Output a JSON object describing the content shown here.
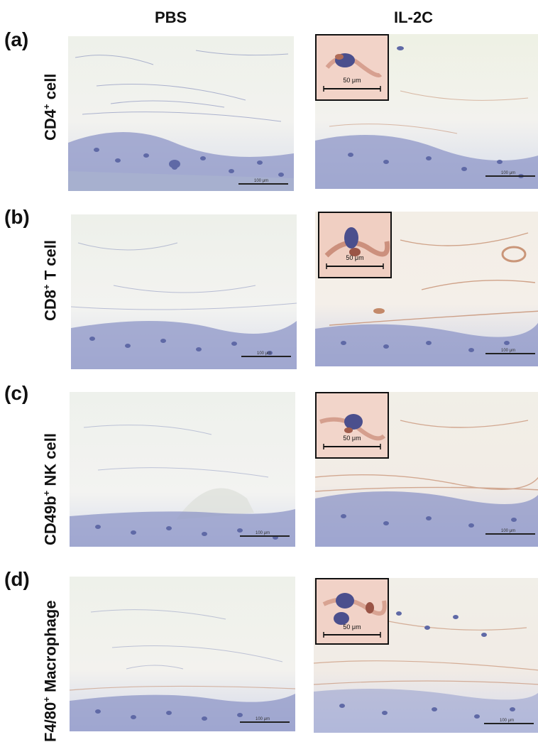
{
  "columns": {
    "left": "PBS",
    "right": "IL-2C"
  },
  "rows": [
    {
      "letter": "(a)",
      "label_main": "CD4",
      "label_sup": "+",
      "label_tail": " cell",
      "inset": true
    },
    {
      "letter": "(b)",
      "label_main": "CD8",
      "label_sup": "+",
      "label_tail": " T cell",
      "inset": true
    },
    {
      "letter": "(c)",
      "label_main": "CD49b",
      "label_sup": "+",
      "label_tail": " NK  cell",
      "inset": true
    },
    {
      "letter": "(d)",
      "label_main": "F4/80",
      "label_sup": "+",
      "label_tail": " Macrophage",
      "inset": true
    }
  ],
  "scalebar_text": "100 μm",
  "inset_scalebar_text": "50 μm",
  "colors": {
    "tissue_base": "#f3f1ee",
    "nuclei": "#6f79b5",
    "stain_brown": "#b8704a",
    "epidermis": "#8e96c7"
  }
}
